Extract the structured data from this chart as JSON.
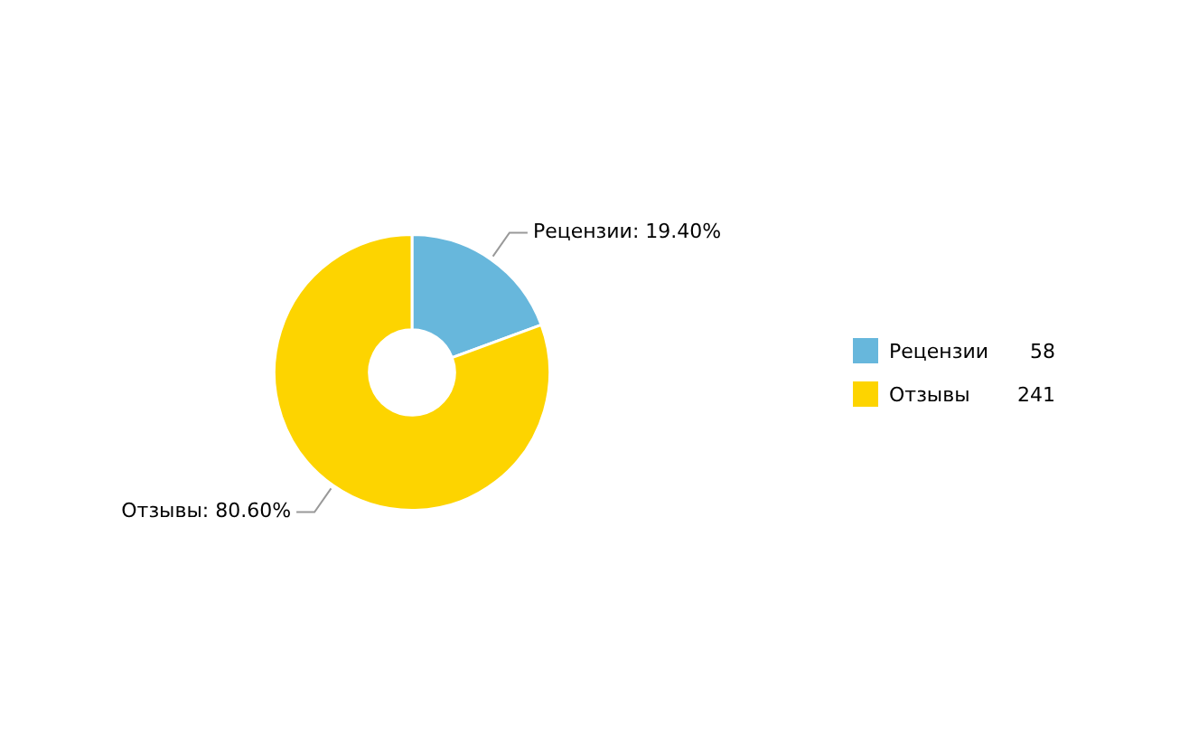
{
  "chart_data": {
    "type": "donut",
    "categories": [
      "Рецензии",
      "Отзывы"
    ],
    "values": [
      19.4,
      80.6
    ],
    "colors": [
      "#67b7dc",
      "#fdd400"
    ],
    "value_labels": [
      "Рецензии: 19.40%",
      "Отзывы: 80.60%"
    ],
    "annotations": [
      "58",
      "241"
    ],
    "legend": "right"
  }
}
